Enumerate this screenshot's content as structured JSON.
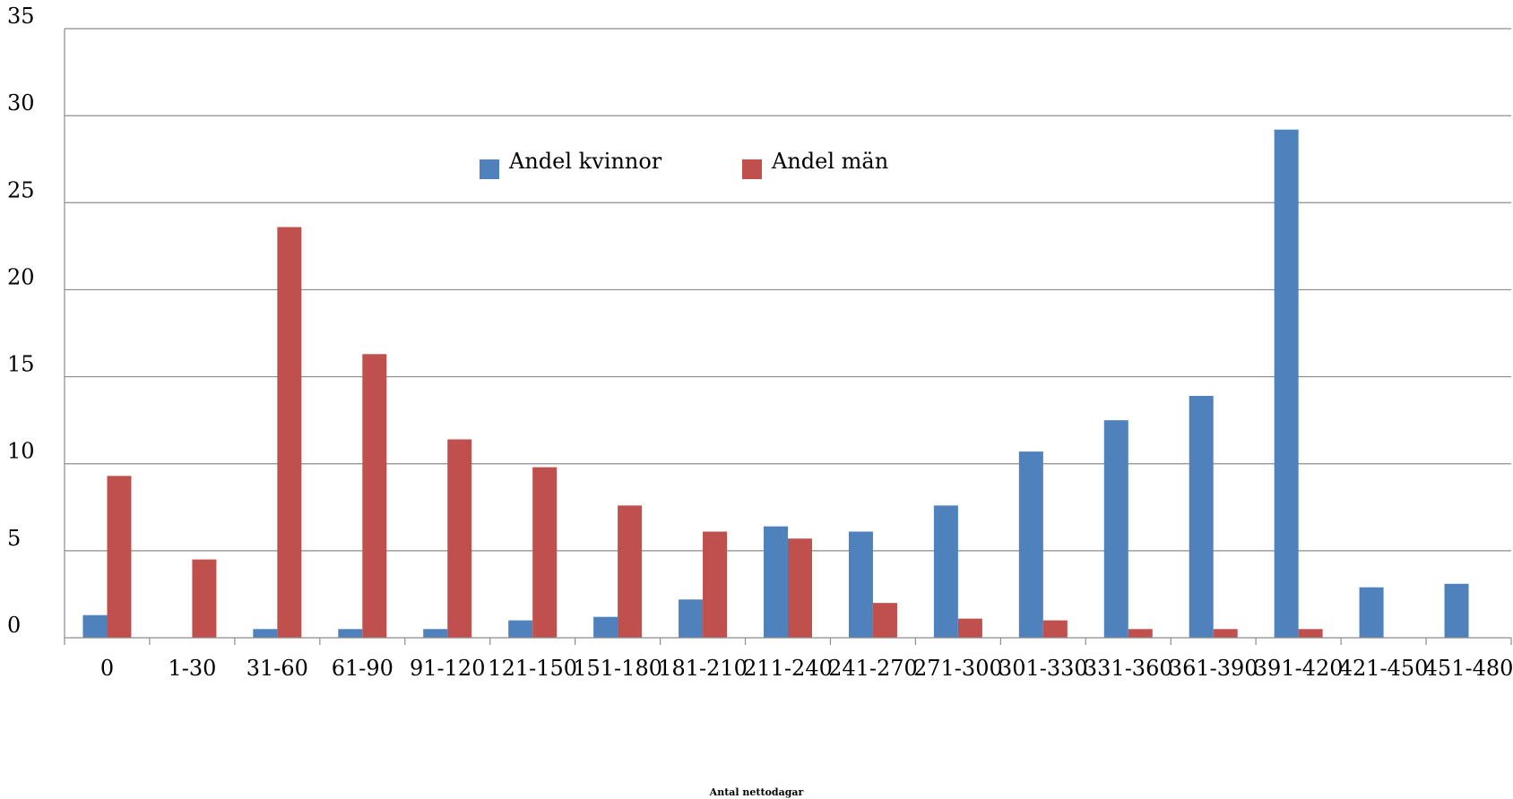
{
  "chart_data": {
    "type": "bar",
    "xlabel": "Antal nettodagar",
    "ylabel": "",
    "ylim": [
      0,
      35
    ],
    "yticks": [
      0,
      5,
      10,
      15,
      20,
      25,
      30,
      35
    ],
    "grid": true,
    "legend_position": "top-center",
    "categories": [
      "0",
      "1-30",
      "31-60",
      "61-90",
      "91-120",
      "121-150",
      "151-180",
      "181-210",
      "211-240",
      "241-270",
      "271-300",
      "301-330",
      "331-360",
      "361-390",
      "391-420",
      "421-450",
      "451-480"
    ],
    "series": [
      {
        "name": "Andel kvinnor",
        "color": "#4F81BD",
        "values": [
          1.3,
          0,
          0.5,
          0.5,
          0.5,
          1.0,
          1.2,
          2.2,
          6.4,
          6.1,
          7.6,
          10.7,
          12.5,
          13.9,
          29.2,
          2.9,
          3.1
        ]
      },
      {
        "name": "Andel män",
        "color": "#C0504D",
        "values": [
          9.3,
          4.5,
          23.6,
          16.3,
          11.4,
          9.8,
          7.6,
          6.1,
          5.7,
          2.0,
          1.1,
          1.0,
          0.5,
          0.5,
          0.5,
          0,
          0
        ]
      }
    ]
  }
}
